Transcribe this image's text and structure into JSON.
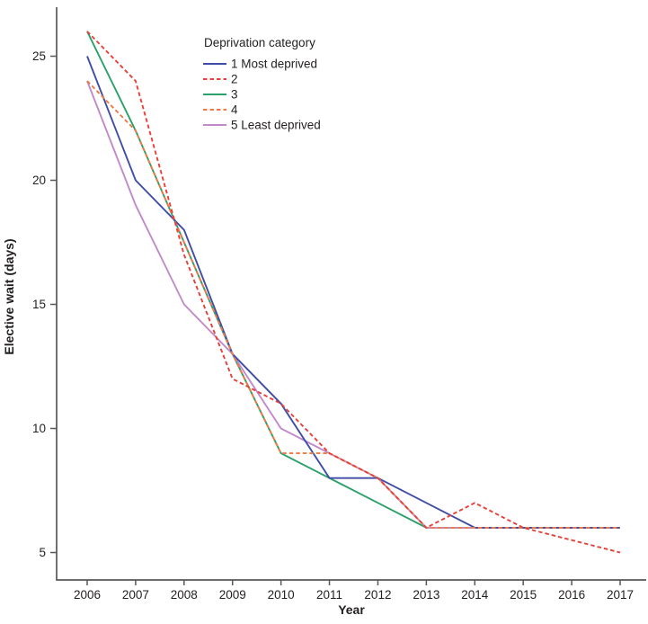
{
  "chart_data": {
    "type": "line",
    "title": "",
    "xlabel": "Year",
    "ylabel": "Elective wait (days)",
    "x": [
      2006,
      2007,
      2008,
      2009,
      2010,
      2011,
      2012,
      2013,
      2014,
      2015,
      2016,
      2017
    ],
    "xtick_labels": [
      "2006",
      "2007",
      "2008",
      "2009",
      "2010",
      "2011",
      "2012",
      "2013",
      "2014",
      "2015",
      "2016",
      "2017"
    ],
    "yticks": [
      5,
      10,
      15,
      20,
      25
    ],
    "ylim": [
      3.8,
      27.0
    ],
    "grid": false,
    "legend_position": "top-center",
    "legend_title": "Deprivation category",
    "series": [
      {
        "name": "1 Most deprived",
        "style": "solid",
        "color": "#3f4ea4",
        "values": [
          25,
          20,
          18,
          13,
          11,
          8,
          8,
          7,
          6,
          6,
          6,
          6
        ]
      },
      {
        "name": "2",
        "style": "dashed",
        "color": "#e6403a",
        "values": [
          26,
          24,
          17,
          12,
          11,
          9,
          8,
          6,
          7,
          6,
          5.5,
          5
        ]
      },
      {
        "name": "3",
        "style": "solid",
        "color": "#2ba06a",
        "values": [
          26,
          22,
          17.5,
          13,
          9,
          8,
          7,
          6,
          6,
          6,
          6,
          6
        ]
      },
      {
        "name": "4",
        "style": "dashed",
        "color": "#ec7b45",
        "values": [
          24,
          22,
          17.5,
          13,
          9,
          9,
          8,
          6,
          6,
          6,
          6,
          6
        ]
      },
      {
        "name": "5 Least deprived",
        "style": "solid",
        "color": "#c289cb",
        "values": [
          24,
          19,
          15,
          13,
          10,
          9,
          8,
          6,
          6,
          6,
          6,
          6
        ]
      }
    ]
  },
  "colors": {
    "axis": "#57575a",
    "text": "#231f20",
    "background": "#ffffff"
  }
}
